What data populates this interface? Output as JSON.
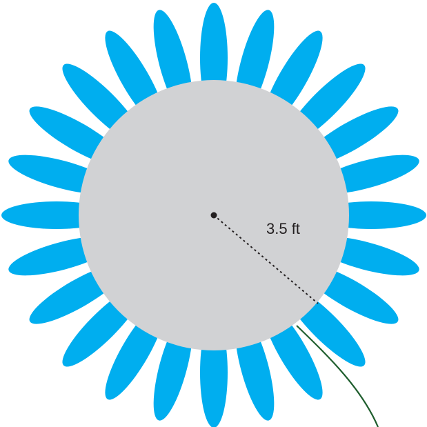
{
  "figure": {
    "radius_label": "3.5 ft",
    "petal_count": 24,
    "colors": {
      "petal": "#00AEEF",
      "center": "#D1D2D4",
      "stem": "#1F5E2E",
      "radius_line": "#231F20",
      "label": "#231F20",
      "background": "#FFFFFF"
    }
  }
}
